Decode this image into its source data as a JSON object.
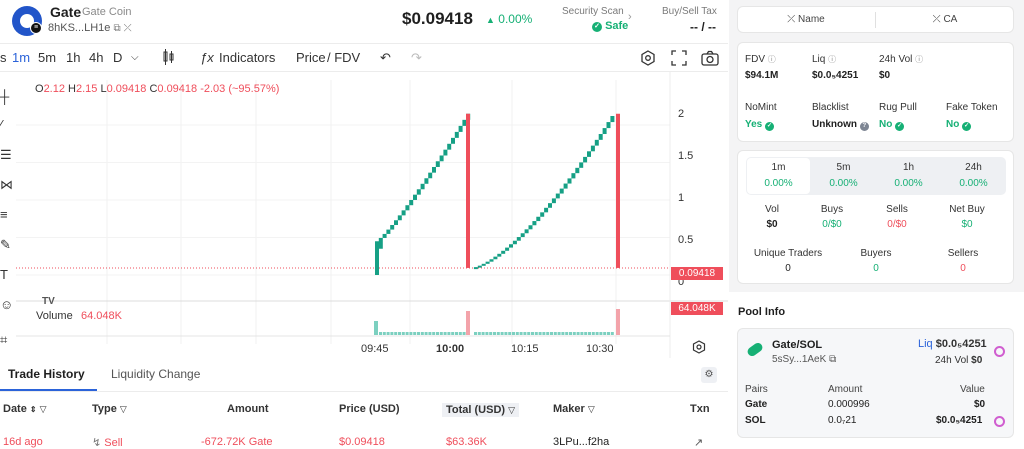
{
  "header": {
    "symbol": "Gate",
    "name": "Gate Coin",
    "address": "8hKS...LH1e",
    "price": "$0.09418",
    "price_change": "0.00%",
    "security_scan_label": "Security Scan",
    "security_scan_value": "Safe",
    "tax_label": "Buy/Sell Tax",
    "tax_value": "-- / --"
  },
  "toolbar": {
    "intervals": [
      "1m",
      "5m",
      "1h",
      "4h",
      "D"
    ],
    "active_interval": "1m",
    "indicators_label": "Indicators",
    "price_label": "Price",
    "fdv_label": "/ FDV"
  },
  "chart_data": {
    "type": "candlestick",
    "legend": {
      "o_label": "O",
      "o": "2.12",
      "h_label": "H",
      "h": "2.15",
      "l_label": "L",
      "l": "0.09418",
      "c_label": "C",
      "c": "0.09418",
      "change": "-2.03 (~95.57%)"
    },
    "y_ticks": [
      "2",
      "1.5",
      "1",
      "0.5",
      "0"
    ],
    "x_ticks": [
      "09:45",
      "10:00",
      "10:15",
      "10:30"
    ],
    "ylim": [
      0,
      2.2
    ],
    "last_price": "0.09418",
    "volume_label": "Volume",
    "volume_value": "64.048K",
    "volume_tag": "64.048K",
    "colors": {
      "up": "#16a085",
      "down": "#ef4e5b"
    }
  },
  "tabs": {
    "trade_history": "Trade History",
    "liquidity_change": "Liquidity Change"
  },
  "table": {
    "headers": [
      "Date",
      "Type",
      "Amount",
      "Price (USD)",
      "Total (USD)",
      "Maker",
      "Txn"
    ],
    "row": {
      "date": "16d ago",
      "type": "Sell",
      "amount": "-672.72K Gate",
      "price": "$0.09418",
      "total": "$63.36K",
      "maker": "3LPu...f2ha"
    }
  },
  "right": {
    "name_btn": "Name",
    "ca_btn": "CA",
    "fdv_label": "FDV",
    "fdv": "$94.1M",
    "liq_label": "Liq",
    "liq": "$0.0₅4251",
    "vol24_label": "24h Vol",
    "vol24": "$0",
    "nomint_label": "NoMint",
    "nomint": "Yes",
    "blacklist_label": "Blacklist",
    "blacklist": "Unknown",
    "rugpull_label": "Rug Pull",
    "rugpull": "No",
    "fake_label": "Fake Token",
    "fake": "No",
    "period_tabs": [
      {
        "label": "1m",
        "value": "0.00%"
      },
      {
        "label": "5m",
        "value": "0.00%"
      },
      {
        "label": "1h",
        "value": "0.00%"
      },
      {
        "label": "24h",
        "value": "0.00%"
      }
    ],
    "vol_label": "Vol",
    "vol": "$0",
    "buys_label": "Buys",
    "buys": "0/$0",
    "sells_label": "Sells",
    "sells": "0/$0",
    "netbuy_label": "Net Buy",
    "netbuy": "$0",
    "unique_label": "Unique Traders",
    "unique": "0",
    "buyers_label": "Buyers",
    "buyers": "0",
    "sellers_label": "Sellers",
    "sellers": "0"
  },
  "pool": {
    "title": "Pool Info",
    "pair": "Gate/SOL",
    "address": "5sSy...1AeK",
    "liq_label": "Liq",
    "liq": "$0.0₅4251",
    "vol_label": "24h Vol",
    "vol": "$0",
    "col_pairs": "Pairs",
    "col_amount": "Amount",
    "col_value": "Value",
    "rows": [
      {
        "pair": "Gate",
        "amount": "0.000996",
        "value": "$0"
      },
      {
        "pair": "SOL",
        "amount": "0.0₇21",
        "value": "$0.0₅4251"
      }
    ]
  }
}
